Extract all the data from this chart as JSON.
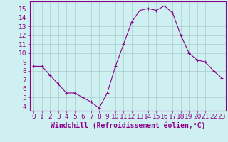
{
  "x": [
    0,
    1,
    2,
    3,
    4,
    5,
    6,
    7,
    8,
    9,
    10,
    11,
    12,
    13,
    14,
    15,
    16,
    17,
    18,
    19,
    20,
    21,
    22,
    23
  ],
  "y": [
    8.5,
    8.5,
    7.5,
    6.5,
    5.5,
    5.5,
    5.0,
    4.5,
    3.8,
    5.5,
    8.5,
    11.0,
    13.5,
    14.8,
    15.0,
    14.8,
    15.3,
    14.5,
    12.0,
    10.0,
    9.2,
    9.0,
    8.0,
    7.2
  ],
  "line_color": "#8B008B",
  "marker": "+",
  "marker_size": 3,
  "bg_color": "#cff0f0",
  "grid_color": "#aacccc",
  "xlabel": "Windchill (Refroidissement éolien,°C)",
  "xlabel_color": "#8B008B",
  "tick_color": "#8B008B",
  "ylim": [
    3.5,
    15.8
  ],
  "xlim": [
    -0.5,
    23.5
  ],
  "yticks": [
    4,
    5,
    6,
    7,
    8,
    9,
    10,
    11,
    12,
    13,
    14,
    15
  ],
  "xticks": [
    0,
    1,
    2,
    3,
    4,
    5,
    6,
    7,
    8,
    9,
    10,
    11,
    12,
    13,
    14,
    15,
    16,
    17,
    18,
    19,
    20,
    21,
    22,
    23
  ],
  "spine_color": "#8B008B",
  "font_size": 6.5,
  "xlabel_fontsize": 7.0
}
